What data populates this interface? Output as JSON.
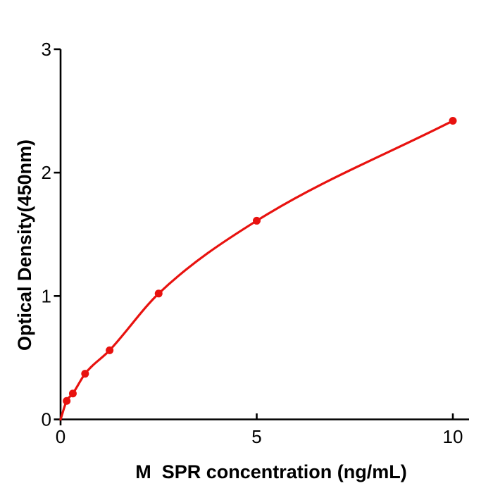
{
  "figure": {
    "background": "#ffffff"
  },
  "chart_data": {
    "type": "scatter",
    "title": "",
    "xlabel": "M  SPR concentration (ng/mL)",
    "ylabel": "Optical Density(450nm)",
    "x": [
      0.156,
      0.313,
      0.625,
      1.25,
      2.5,
      5,
      10
    ],
    "y": [
      0.15,
      0.21,
      0.37,
      0.56,
      1.02,
      1.61,
      2.42
    ],
    "curve_start": {
      "x": 0,
      "y": 0
    },
    "xticks": [
      0,
      5,
      10
    ],
    "yticks": [
      0,
      1,
      2,
      3
    ],
    "xlim": [
      0,
      10.4
    ],
    "ylim": [
      0,
      3
    ],
    "grid": false,
    "legend": false,
    "series_color": "#e8120f",
    "axis_color": "#000000",
    "marker_radius": 5.5,
    "line_width": 3.2
  }
}
